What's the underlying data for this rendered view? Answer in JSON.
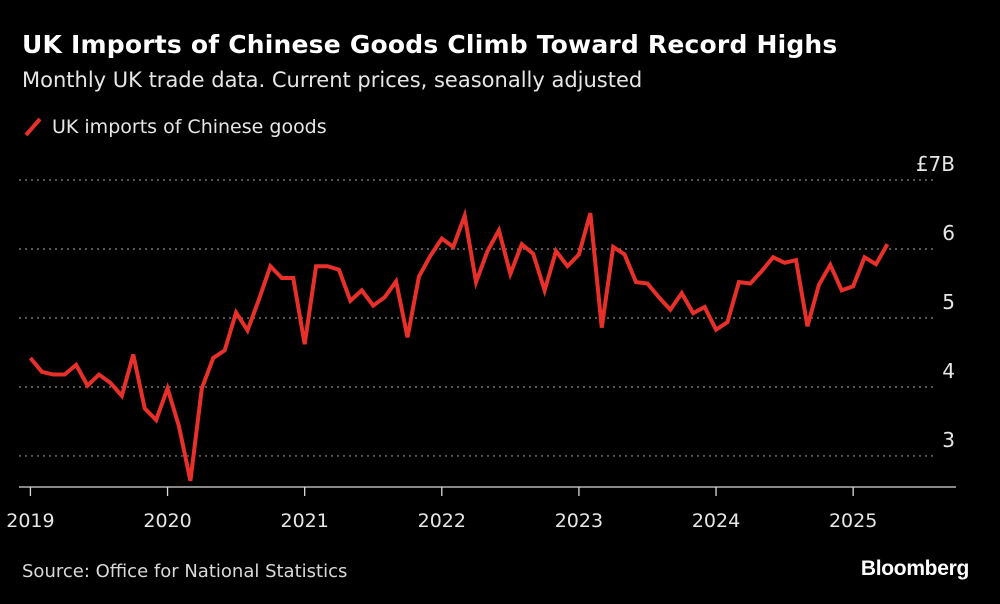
{
  "chart_data": {
    "type": "line",
    "title": "UK Imports of Chinese Goods Climb Toward Record Highs",
    "subtitle": "Monthly UK trade data. Current prices, seasonally adjusted",
    "legend": [
      "UK imports of Chinese goods"
    ],
    "series_color": "#e8302b",
    "ylim": [
      2.55,
      7
    ],
    "yticks": [
      {
        "value": 7,
        "label": "£7B"
      },
      {
        "value": 6,
        "label": "6"
      },
      {
        "value": 5,
        "label": "5"
      },
      {
        "value": 4,
        "label": "4"
      },
      {
        "value": 3,
        "label": "3"
      }
    ],
    "xlim": [
      2018.9167,
      2025.75
    ],
    "xticks": [
      {
        "value": 2019,
        "label": "2019"
      },
      {
        "value": 2020,
        "label": "2020"
      },
      {
        "value": 2021,
        "label": "2021"
      },
      {
        "value": 2022,
        "label": "2022"
      },
      {
        "value": 2023,
        "label": "2023"
      },
      {
        "value": 2024,
        "label": "2024"
      },
      {
        "value": 2025,
        "label": "2025"
      }
    ],
    "x_start": 2019,
    "x_step_months": 1,
    "series": [
      {
        "name": "UK imports of Chinese goods",
        "values": [
          4.42,
          4.22,
          4.18,
          4.18,
          4.32,
          4.02,
          4.18,
          4.06,
          3.87,
          4.47,
          3.69,
          3.52,
          3.98,
          3.43,
          2.64,
          3.98,
          4.42,
          4.53,
          5.08,
          4.82,
          5.27,
          5.75,
          5.58,
          5.58,
          4.62,
          5.75,
          5.75,
          5.7,
          5.25,
          5.4,
          5.18,
          5.3,
          5.53,
          4.72,
          5.6,
          5.9,
          6.15,
          6.03,
          6.48,
          5.52,
          5.97,
          6.27,
          5.64,
          6.07,
          5.93,
          5.4,
          5.97,
          5.75,
          5.92,
          6.52,
          4.86,
          6.03,
          5.92,
          5.52,
          5.5,
          5.3,
          5.12,
          5.36,
          5.07,
          5.16,
          4.83,
          4.94,
          5.52,
          5.5,
          5.68,
          5.88,
          5.8,
          5.84,
          4.88,
          5.48,
          5.77,
          5.4,
          5.46,
          5.88,
          5.78,
          6.07
        ]
      }
    ]
  },
  "source": "Source: Office for National Statistics",
  "logo": "Bloomberg"
}
